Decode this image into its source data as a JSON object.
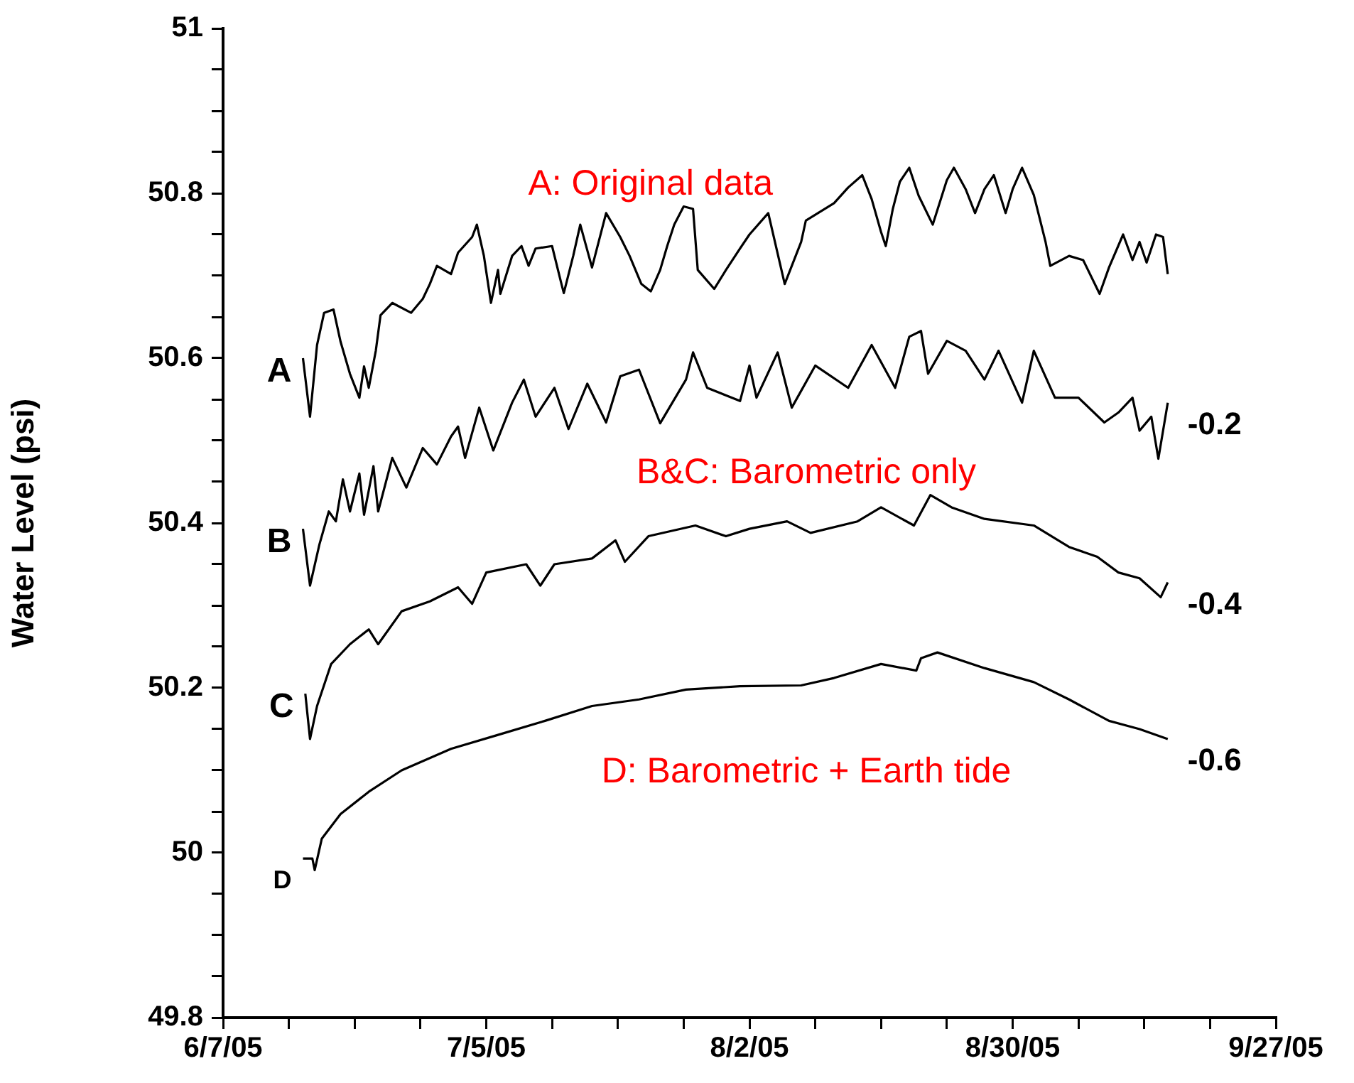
{
  "chart_data": {
    "type": "line",
    "ylabel": "Water Level (psi)",
    "xlim": [
      "--06-07",
      "--09-27"
    ],
    "xticks": [
      {
        "value": "--06-07",
        "label": "6/7/05"
      },
      {
        "value": "--06-14",
        "label": null
      },
      {
        "value": "--06-21",
        "label": null
      },
      {
        "value": "--06-28",
        "label": null
      },
      {
        "value": "--07-05",
        "label": "7/5/05"
      },
      {
        "value": "--07-12",
        "label": null
      },
      {
        "value": "--07-19",
        "label": null
      },
      {
        "value": "--07-26",
        "label": null
      },
      {
        "value": "--08-02",
        "label": "8/2/05"
      },
      {
        "value": "--08-09",
        "label": null
      },
      {
        "value": "--08-16",
        "label": null
      },
      {
        "value": "--08-23",
        "label": null
      },
      {
        "value": "--08-30",
        "label": "8/30/05"
      },
      {
        "value": "--09-06",
        "label": null
      },
      {
        "value": "--09-13",
        "label": null
      },
      {
        "value": "--09-20",
        "label": null
      },
      {
        "value": "--09-27",
        "label": "9/27/05"
      }
    ],
    "ylim": [
      49.8,
      51
    ],
    "yticks": [
      49.8,
      {
        "value": 49.85,
        "label": null
      },
      {
        "value": 49.9,
        "label": null
      },
      {
        "value": 49.95,
        "label": null
      },
      50,
      {
        "value": 50.05,
        "label": null
      },
      {
        "value": 50.1,
        "label": null
      },
      {
        "value": 50.15,
        "label": null
      },
      50.2,
      {
        "value": 50.25,
        "label": null
      },
      {
        "value": 50.3,
        "label": null
      },
      {
        "value": 50.35,
        "label": null
      },
      50.4,
      {
        "value": 50.45,
        "label": null
      },
      {
        "value": 50.5,
        "label": null
      },
      {
        "value": 50.55,
        "label": null
      },
      50.6,
      {
        "value": 50.65,
        "label": null
      },
      {
        "value": 50.7,
        "label": null
      },
      {
        "value": 50.75,
        "label": null
      },
      50.8,
      {
        "value": 50.85,
        "label": null
      },
      {
        "value": 50.9,
        "label": null
      },
      {
        "value": 50.95,
        "label": null
      },
      51
    ],
    "grid": false,
    "legend": false,
    "marker": "none",
    "series": [
      {
        "name": "A",
        "color": "#000000",
        "x": [
          "--06-15T12:00",
          "--06-16T06:00",
          "--06-17T00:00",
          "--06-17T18:00",
          "--06-18T18:00",
          "--06-19T12:00",
          "--06-20T12:00",
          "--06-21T12:00",
          "--06-22T00:00",
          "--06-22T12:00",
          "--06-23T06:00",
          "--06-23T18:00",
          "--06-25T00:00",
          "--06-27T00:00",
          "--06-28T06:00",
          "--06-29T00:00",
          "--06-29T18:00",
          "--07-01T06:00",
          "--07-02T00:00",
          "--07-03T12:00",
          "--07-04T00:00",
          "--07-04T18:00",
          "--07-05T12:00",
          "--07-06T06:00",
          "--07-06T12:00",
          "--07-07T18:00",
          "--07-08T18:00",
          "--07-09T12:00",
          "--07-10T06:00",
          "--07-12T00:00",
          "--07-13T00:00",
          "--07-13T06:00",
          "--07-14T06:00",
          "--07-15T00:00",
          "--07-16T06:00",
          "--07-17T18:00",
          "--07-19T06:00",
          "--07-20T06:00",
          "--07-21T12:00",
          "--07-22T12:00",
          "--07-23T12:00",
          "--07-24T06:00",
          "--07-25T00:00",
          "--07-26T00:00",
          "--07-27T00:00",
          "--07-27T12:00",
          "--07-29T06:00",
          "--07-30T12:00",
          "--08-01T00:00",
          "--08-02T00:00",
          "--08-04T00:00",
          "--08-05T18:00",
          "--08-07T12:00",
          "--08-08T00:00",
          "--08-11T00:00",
          "--08-12T12:00",
          "--08-14T00:00",
          "--08-15T00:00",
          "--08-16T00:00",
          "--08-16T12:00",
          "--08-17T06:00",
          "--08-18T00:00",
          "--08-19T00:00",
          "--08-20T00:00",
          "--08-21T12:00",
          "--08-23T00:00",
          "--08-23T18:00",
          "--08-25T00:00",
          "--08-26T00:00",
          "--08-27T00:00",
          "--08-28T00:00",
          "--08-29T06:00",
          "--08-30T00:00",
          "--08-31T00:00",
          "--09-01T06:00",
          "--09-02T12:00",
          "--09-03T00:00",
          "--09-05T00:00",
          "--09-06T12:00",
          "--09-08T06:00",
          "--09-09T06:00",
          "--09-10T18:00",
          "--09-11T18:00",
          "--09-12T12:00",
          "--09-13T06:00",
          "--09-14T06:00",
          "--09-15T00:00",
          "--09-15T12:00"
        ],
        "values": [
          50.6,
          50.529,
          50.616,
          50.655,
          50.659,
          50.62,
          50.581,
          50.552,
          50.59,
          50.564,
          50.609,
          50.652,
          50.667,
          50.655,
          50.672,
          50.69,
          50.712,
          50.702,
          50.728,
          50.747,
          50.762,
          50.724,
          50.667,
          50.707,
          50.678,
          50.724,
          50.736,
          50.712,
          50.733,
          50.736,
          50.69,
          50.679,
          50.724,
          50.762,
          50.71,
          50.776,
          50.747,
          50.724,
          50.69,
          50.681,
          50.707,
          50.736,
          50.762,
          50.784,
          50.781,
          50.707,
          50.684,
          50.707,
          50.733,
          50.75,
          50.776,
          50.69,
          50.741,
          50.767,
          50.788,
          50.807,
          50.822,
          50.793,
          50.753,
          50.736,
          50.781,
          50.814,
          50.831,
          50.797,
          50.762,
          50.816,
          50.831,
          50.805,
          50.776,
          50.805,
          50.822,
          50.776,
          50.805,
          50.831,
          50.798,
          50.741,
          50.712,
          50.724,
          50.719,
          50.678,
          50.71,
          50.75,
          50.719,
          50.741,
          50.716,
          50.75,
          50.747,
          50.702
        ]
      },
      {
        "name": "B",
        "color": "#000000",
        "x": [
          "--06-15T12:00",
          "--06-16T06:00",
          "--06-17T06:00",
          "--06-18T06:00",
          "--06-19T00:00",
          "--06-19T18:00",
          "--06-20T12:00",
          "--06-21T12:00",
          "--06-22T00:00",
          "--06-23T00:00",
          "--06-23T12:00",
          "--06-25T00:00",
          "--06-26T12:00",
          "--06-28T06:00",
          "--06-29T18:00",
          "--07-01T06:00",
          "--07-02T00:00",
          "--07-02T18:00",
          "--07-04T06:00",
          "--07-05T18:00",
          "--07-07T18:00",
          "--07-09T00:00",
          "--07-10T06:00",
          "--07-12T06:00",
          "--07-13T18:00",
          "--07-15T18:00",
          "--07-17T18:00",
          "--07-19T06:00",
          "--07-21T06:00",
          "--07-23T12:00",
          "--07-26T06:00",
          "--07-27T00:00",
          "--07-28T12:00",
          "--08-01T00:00",
          "--08-02T00:00",
          "--08-02T18:00",
          "--08-05T00:00",
          "--08-06T12:00",
          "--08-09T00:00",
          "--08-12T12:00",
          "--08-15T00:00",
          "--08-17T12:00",
          "--08-19T00:00",
          "--08-20T06:00",
          "--08-21T00:00",
          "--08-23T00:00",
          "--08-25T00:00",
          "--08-27T00:00",
          "--08-28T12:00",
          "--08-31T00:00",
          "--09-01T06:00",
          "--09-03T12:00",
          "--09-06T00:00",
          "--09-08T18:00",
          "--09-10T06:00",
          "--09-11T18:00",
          "--09-12T12:00",
          "--09-13T18:00",
          "--09-14T12:00",
          "--09-15T12:00"
        ],
        "values": [
          50.393,
          50.324,
          50.374,
          50.414,
          50.402,
          50.453,
          50.414,
          50.46,
          50.41,
          50.469,
          50.414,
          50.479,
          50.443,
          50.491,
          50.471,
          50.505,
          50.517,
          50.479,
          50.54,
          50.488,
          50.546,
          50.574,
          50.529,
          50.564,
          50.514,
          50.569,
          50.522,
          50.578,
          50.586,
          50.521,
          50.574,
          50.607,
          50.564,
          50.548,
          50.591,
          50.552,
          50.607,
          50.54,
          50.591,
          50.564,
          50.616,
          50.564,
          50.626,
          50.633,
          50.581,
          50.621,
          50.609,
          50.574,
          50.609,
          50.546,
          50.609,
          50.552,
          50.552,
          50.522,
          50.534,
          50.552,
          50.512,
          50.529,
          50.478,
          50.546
        ]
      },
      {
        "name": "C",
        "color": "#000000",
        "x": [
          "--06-15T18:00",
          "--06-16T06:00",
          "--06-17T00:00",
          "--06-18T12:00",
          "--06-20T12:00",
          "--06-22T12:00",
          "--06-23T12:00",
          "--06-26T00:00",
          "--06-29T00:00",
          "--07-02T00:00",
          "--07-03T12:00",
          "--07-05T00:00",
          "--07-09T06:00",
          "--07-10T18:00",
          "--07-12T06:00",
          "--07-16T06:00",
          "--07-18T18:00",
          "--07-19T18:00",
          "--07-22T06:00",
          "--07-27T06:00",
          "--07-30T12:00",
          "--08-02T00:00",
          "--08-06T00:00",
          "--08-08T12:00",
          "--08-13T12:00",
          "--08-16T00:00",
          "--08-19T12:00",
          "--08-21T06:00",
          "--08-23T12:00",
          "--08-27T00:00",
          "--09-01T06:00",
          "--09-05T00:00",
          "--09-08T00:00",
          "--09-10T06:00",
          "--09-12T12:00",
          "--09-14T18:00",
          "--09-15T12:00"
        ],
        "values": [
          50.193,
          50.138,
          50.178,
          50.229,
          50.253,
          50.271,
          50.253,
          50.293,
          50.305,
          50.322,
          50.302,
          50.34,
          50.35,
          50.324,
          50.35,
          50.357,
          50.379,
          50.353,
          50.384,
          50.397,
          50.384,
          50.393,
          50.402,
          50.388,
          50.402,
          50.419,
          50.397,
          50.434,
          50.419,
          50.405,
          50.397,
          50.371,
          50.359,
          50.34,
          50.333,
          50.31,
          50.328
        ]
      },
      {
        "name": "D",
        "color": "#000000",
        "x": [
          "--06-15T12:00",
          "--06-16T12:00",
          "--06-16T18:00",
          "--06-17T12:00",
          "--06-19T12:00",
          "--06-22T12:00",
          "--06-26T00:00",
          "--07-01T06:00",
          "--07-06T06:00",
          "--07-11T06:00",
          "--07-16T06:00",
          "--07-21T06:00",
          "--07-26T06:00",
          "--08-01T00:00",
          "--08-07T12:00",
          "--08-11T00:00",
          "--08-16T00:00",
          "--08-19T18:00",
          "--08-20T06:00",
          "--08-22T00:00",
          "--08-27T00:00",
          "--09-01T06:00",
          "--09-05T00:00",
          "--09-09T06:00",
          "--09-12T12:00",
          "--09-15T12:00"
        ],
        "values": [
          49.993,
          49.993,
          49.979,
          50.017,
          50.047,
          50.074,
          50.1,
          50.126,
          50.143,
          50.16,
          50.178,
          50.186,
          50.198,
          50.202,
          50.203,
          50.212,
          50.229,
          50.221,
          50.236,
          50.243,
          50.224,
          50.207,
          50.186,
          50.16,
          50.15,
          50.138
        ]
      }
    ],
    "annotations": [
      "A: Original data",
      "B&C: Barometric only",
      "D: Barometric + Earth tide",
      "-0.2",
      "-0.4",
      "-0.6"
    ]
  }
}
